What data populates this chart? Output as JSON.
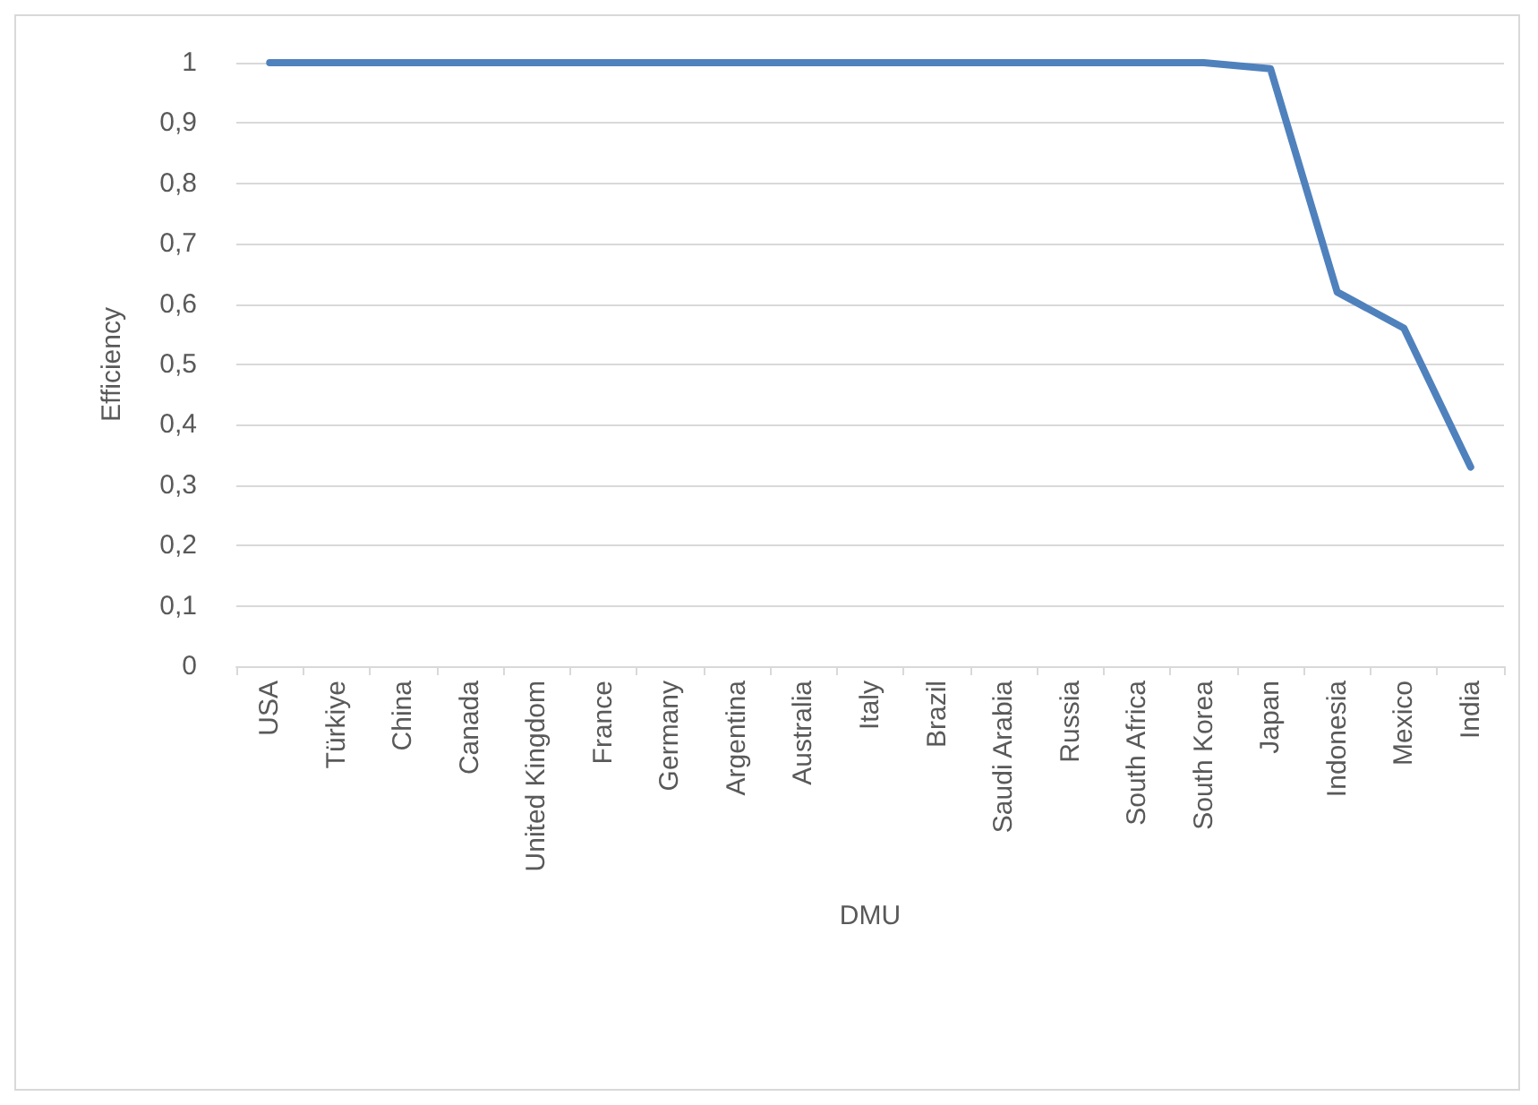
{
  "chart_data": {
    "type": "line",
    "xlabel": "DMU",
    "ylabel": "Efficiency",
    "categories": [
      "USA",
      "Türkiye",
      "China",
      "Canada",
      "United Kingdom",
      "France",
      "Germany",
      "Argentina",
      "Australia",
      "Italy",
      "Brazil",
      "Saudi Arabia",
      "Russia",
      "South Africa",
      "South Korea",
      "Japan",
      "Indonesia",
      "Mexico",
      "India"
    ],
    "series": [
      {
        "color": "#4f81bd",
        "values": [
          1,
          1,
          1,
          1,
          1,
          1,
          1,
          1,
          1,
          1,
          1,
          1,
          1,
          1,
          1,
          0.99,
          0.62,
          0.56,
          0.33
        ]
      }
    ],
    "ylim": [
      0,
      1
    ],
    "yticks": [
      0,
      {
        "value": 0.1,
        "label": "0,1"
      },
      {
        "value": 0.2,
        "label": "0,2"
      },
      {
        "value": 0.3,
        "label": "0,3"
      },
      {
        "value": 0.4,
        "label": "0,4"
      },
      {
        "value": 0.5,
        "label": "0,5"
      },
      {
        "value": 0.6,
        "label": "0,6"
      },
      {
        "value": 0.7,
        "label": "0,7"
      },
      {
        "value": 0.8,
        "label": "0,8"
      },
      {
        "value": 0.9,
        "label": "0,9"
      },
      1
    ],
    "grid": "y",
    "marker": "none",
    "line_style": "solid"
  }
}
